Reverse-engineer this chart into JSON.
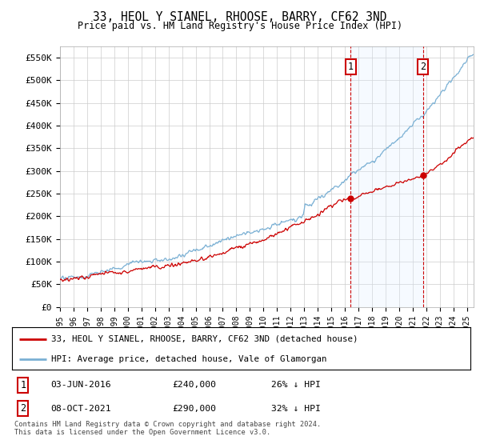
{
  "title": "33, HEOL Y SIANEL, RHOOSE, BARRY, CF62 3ND",
  "subtitle": "Price paid vs. HM Land Registry's House Price Index (HPI)",
  "ylim": [
    0,
    575000
  ],
  "xlim_start": 1995.0,
  "xlim_end": 2025.5,
  "sale1_date": "03-JUN-2016",
  "sale1_x": 2016.42,
  "sale1_price": 240000,
  "sale1_label": "26% ↓ HPI",
  "sale2_date": "08-OCT-2021",
  "sale2_x": 2021.77,
  "sale2_price": 290000,
  "sale2_label": "32% ↓ HPI",
  "red_line_color": "#cc0000",
  "blue_line_color": "#7ab0d4",
  "shade_color": "#ddeeff",
  "grid_color": "#cccccc",
  "background_color": "#ffffff",
  "legend_line1": "33, HEOL Y SIANEL, RHOOSE, BARRY, CF62 3ND (detached house)",
  "legend_line2": "HPI: Average price, detached house, Vale of Glamorgan",
  "footer1": "Contains HM Land Registry data © Crown copyright and database right 2024.",
  "footer2": "This data is licensed under the Open Government Licence v3.0.",
  "marker_box_color": "#cc0000",
  "ytick_labels": [
    "£0",
    "£50K",
    "£100K",
    "£150K",
    "£200K",
    "£250K",
    "£300K",
    "£350K",
    "£400K",
    "£450K",
    "£500K",
    "£550K"
  ]
}
